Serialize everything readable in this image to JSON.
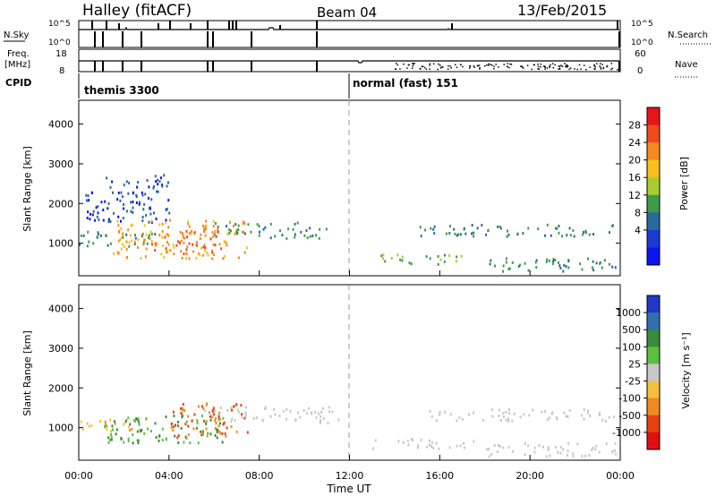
{
  "header": {
    "station": "Halley (fitACF)",
    "beam": "Beam 04",
    "date": "13/Feb/2015"
  },
  "panels": {
    "nsky_label": "N.Sky",
    "nsearch_label": "N.Search",
    "nsky_ticks": [
      "10^5",
      "10^0"
    ],
    "nsearch_ticks": [
      "10^5",
      "10^0"
    ],
    "freq_label_1": "Freq.",
    "freq_label_2": "[MHz]",
    "freq_ticks": [
      "18",
      "8"
    ],
    "nave_label": "Nave",
    "nave_ticks": [
      "60",
      "0"
    ],
    "cpid_label": "CPID",
    "cpid_1": "themis 3300",
    "cpid_2": "normal (fast) 151"
  },
  "axes": {
    "ylabel": "Slant Range [km]",
    "xlabel": "Time UT",
    "yticks": [
      "4000",
      "3000",
      "2000",
      "1000"
    ],
    "xticks": [
      "00:00",
      "04:00",
      "08:00",
      "12:00",
      "16:00",
      "20:00",
      "00:00"
    ]
  },
  "power_bar": {
    "label": "Power [dB]",
    "ticks": [
      "28",
      "24",
      "20",
      "16",
      "12",
      "8",
      "4"
    ],
    "colors": [
      "#e8141c",
      "#f04a1e",
      "#f78a1e",
      "#f7c01e",
      "#a9cc2e",
      "#3f9a4a",
      "#2a6a9a",
      "#1a3ad0",
      "#0a14f0"
    ]
  },
  "velocity_bar": {
    "label": "Velocity [m s⁻¹]",
    "ticks": [
      "1000",
      "500",
      "100",
      "25",
      "-25",
      "-100",
      "-500",
      "-1000"
    ],
    "colors": [
      "#2038c8",
      "#3070b0",
      "#3a8a3a",
      "#5ac040",
      "#c8c8c8",
      "#f5c040",
      "#f08a20",
      "#e84010",
      "#e01010"
    ]
  },
  "chart_data": [
    {
      "type": "heatmap",
      "title": "Beam 04",
      "xlabel": "Time UT",
      "ylabel": "Slant Range [km]",
      "xlim": [
        0,
        24
      ],
      "ylim": [
        180,
        4600
      ],
      "colorbar": "Power [dB]",
      "regions": [
        {
          "t": [
            0.0,
            3.5
          ],
          "r": [
            900,
            1300
          ],
          "level": 8
        },
        {
          "t": [
            0.2,
            4.0
          ],
          "r": [
            1500,
            2700
          ],
          "level": 4
        },
        {
          "t": [
            1.5,
            7.5
          ],
          "r": [
            600,
            1600
          ],
          "level": 20
        },
        {
          "t": [
            3.2,
            6.3
          ],
          "r": [
            700,
            1300
          ],
          "level": 24
        },
        {
          "t": [
            6.0,
            11.0
          ],
          "r": [
            1100,
            1500
          ],
          "level": 8
        },
        {
          "t": [
            13.0,
            17.0
          ],
          "r": [
            450,
            700
          ],
          "level": 12
        },
        {
          "t": [
            15.0,
            24.0
          ],
          "r": [
            1150,
            1450
          ],
          "level": 8
        },
        {
          "t": [
            18.0,
            24.0
          ],
          "r": [
            250,
            600
          ],
          "level": 8
        }
      ]
    },
    {
      "type": "heatmap",
      "title": "Beam 04",
      "xlabel": "Time UT",
      "ylabel": "Slant Range [km]",
      "xlim": [
        0,
        24
      ],
      "ylim": [
        180,
        4600
      ],
      "colorbar": "Velocity [m s⁻¹]",
      "regions": [
        {
          "t": [
            0.0,
            3.0
          ],
          "r": [
            900,
            1200
          ],
          "level": -100
        },
        {
          "t": [
            1.0,
            6.5
          ],
          "r": [
            600,
            1300
          ],
          "level": 100
        },
        {
          "t": [
            4.0,
            7.5
          ],
          "r": [
            700,
            1600
          ],
          "level": -500
        },
        {
          "t": [
            5.5,
            11.5
          ],
          "r": [
            1100,
            1500
          ],
          "level": 0
        },
        {
          "t": [
            13.0,
            17.5
          ],
          "r": [
            450,
            700
          ],
          "level": 0
        },
        {
          "t": [
            15.5,
            24.0
          ],
          "r": [
            1150,
            1450
          ],
          "level": 0
        },
        {
          "t": [
            18.0,
            24.0
          ],
          "r": [
            250,
            600
          ],
          "level": 0
        }
      ]
    }
  ]
}
